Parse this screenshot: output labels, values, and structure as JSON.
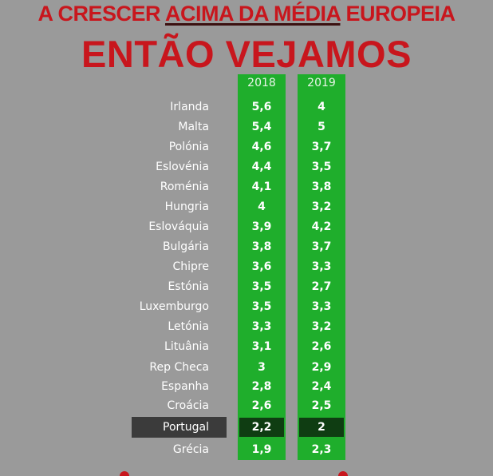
{
  "header": {
    "line1_prefix": "A CRESCER ",
    "line1_underlined": "ACIMA DA MÉDIA",
    "line1_suffix": " EUROPEIA",
    "line2": "ENTÃO VEJAMOS"
  },
  "colors": {
    "headline": "#c8161d",
    "column": "#1fae2c",
    "highlight_value": "#0f3d12",
    "highlight_label": "#3b3b3b",
    "background": "#9a9a9a"
  },
  "chart_data": {
    "type": "table",
    "columns": [
      "2018",
      "2019"
    ],
    "highlighted": "Portugal",
    "rows": [
      {
        "country": "Irlanda",
        "v2018": "5,6",
        "v2019": "4"
      },
      {
        "country": "Malta",
        "v2018": "5,4",
        "v2019": "5"
      },
      {
        "country": "Polónia",
        "v2018": "4,6",
        "v2019": "3,7"
      },
      {
        "country": "Eslovénia",
        "v2018": "4,4",
        "v2019": "3,5"
      },
      {
        "country": "Roménia",
        "v2018": "4,1",
        "v2019": "3,8"
      },
      {
        "country": "Hungria",
        "v2018": "4",
        "v2019": "3,2"
      },
      {
        "country": "Eslováquia",
        "v2018": "3,9",
        "v2019": "4,2"
      },
      {
        "country": "Bulgária",
        "v2018": "3,8",
        "v2019": "3,7"
      },
      {
        "country": "Chipre",
        "v2018": "3,6",
        "v2019": "3,3"
      },
      {
        "country": "Estónia",
        "v2018": "3,5",
        "v2019": "2,7"
      },
      {
        "country": "Luxemburgo",
        "v2018": "3,5",
        "v2019": "3,3"
      },
      {
        "country": "Letónia",
        "v2018": "3,3",
        "v2019": "3,2"
      },
      {
        "country": "Lituânia",
        "v2018": "3,1",
        "v2019": "2,6"
      },
      {
        "country": "Rep Checa",
        "v2018": "3",
        "v2019": "2,9"
      },
      {
        "country": "Espanha",
        "v2018": "2,8",
        "v2019": "2,4"
      },
      {
        "country": "Croácia",
        "v2018": "2,6",
        "v2019": "2,5"
      },
      {
        "country": "Portugal",
        "v2018": "2,2",
        "v2019": "2"
      },
      {
        "country": "Grécia",
        "v2018": "1,9",
        "v2019": "2,3"
      }
    ]
  }
}
